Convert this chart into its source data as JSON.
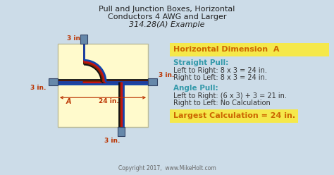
{
  "title_line1": "Pull and Junction Boxes, Horizontal",
  "title_line2": "Conductors 4 AWG and Larger",
  "title_line3": "314.28(A) Example",
  "bg_color": "#ccdce8",
  "box_fill": "#fffacc",
  "header_bg": "#f5e84a",
  "result_bg": "#f5e84a",
  "header_text": "Horizontal Dimension  A",
  "straight_pull_label": "Straight Pull:",
  "straight_pull_line1": "Left to Right: 8 x 3 = 24 in.",
  "straight_pull_line2": "Right to Left: 8 x 3 = 24 in.",
  "angle_pull_label": "Angle Pull:",
  "angle_pull_line1": "Left to Right: (6 x 3) + 3 = 21 in.",
  "angle_pull_line2": "Right to Left: No Calculation",
  "result_text": "Largest Calculation = 24 in.",
  "copyright": "Copyright 2017,  www.MikeHolt.com",
  "label_3in_top": "3 in.",
  "label_3in_right": "3 in.",
  "label_3in_left": "3 in.",
  "label_3in_bottom": "3 in.",
  "label_24in": "24 in.",
  "label_A": "A",
  "dim_color": "#bb3300",
  "header_color": "#cc6600",
  "teal_color": "#3399aa",
  "body_color": "#333333",
  "wire_black": "#111111",
  "wire_red": "#cc1111",
  "wire_brown": "#882200",
  "wire_blue": "#1144aa",
  "connector_face": "#6688aa",
  "connector_edge": "#334466"
}
